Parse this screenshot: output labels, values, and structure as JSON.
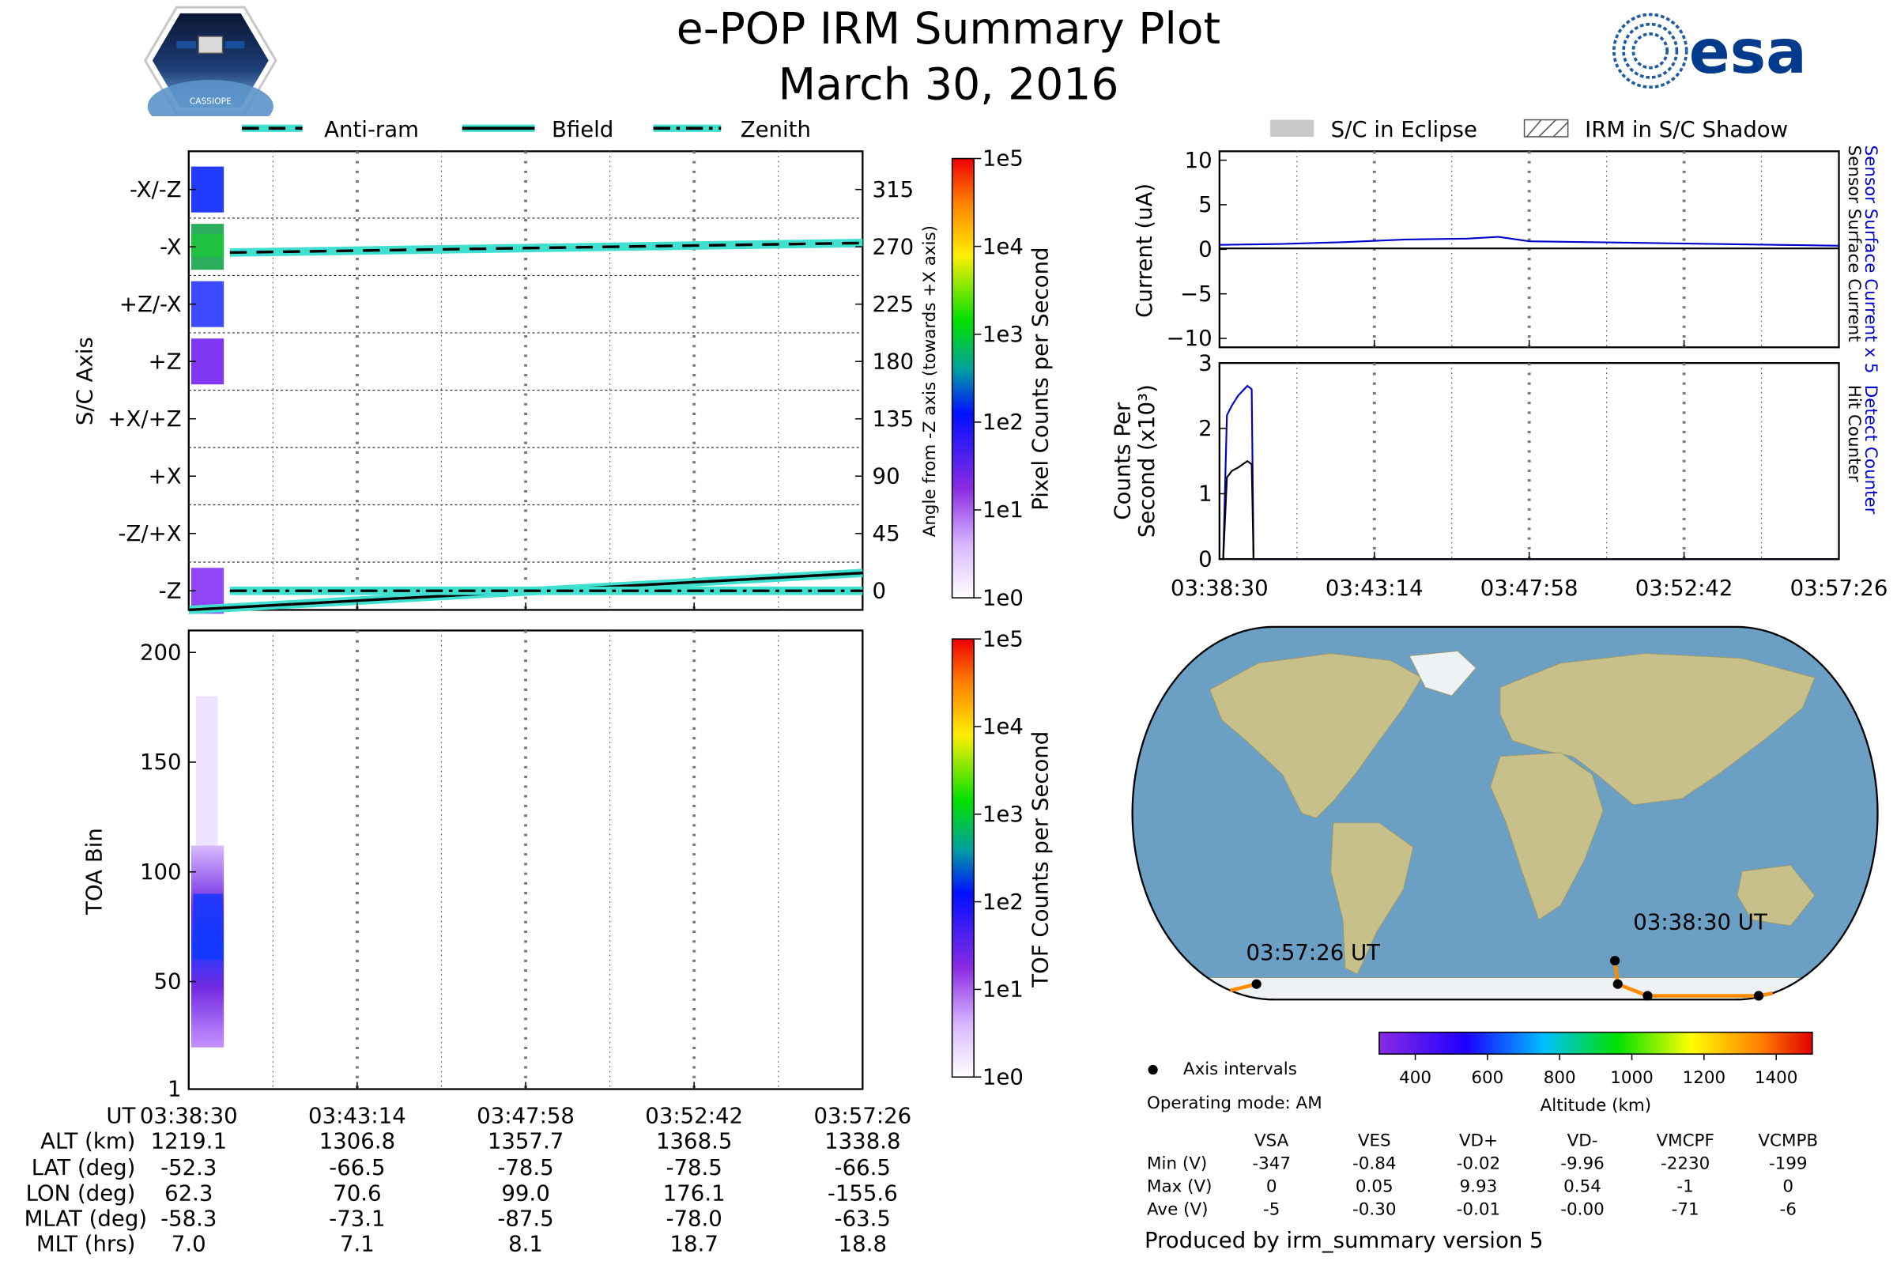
{
  "header": {
    "title": "e-POP IRM Summary Plot",
    "date": "March 30, 2016",
    "logo_left_text": "CASSIOPE",
    "logo_right_text": "esa"
  },
  "colors": {
    "line_cyan": "#40e0d0",
    "current_blue": "#0000cc",
    "orbit_orange": "#ff8c00",
    "ocean": "#6b9fc4",
    "land": "#c8c08a"
  },
  "legends": {
    "angle": [
      "Anti-ram",
      "Bfield",
      "Zenith"
    ],
    "current": [
      "S/C in Eclipse",
      "IRM in S/C Shadow"
    ]
  },
  "chart_data": [
    {
      "id": "sc-axis-angle",
      "type": "heatmap",
      "ylabel": "S/C Axis",
      "ylabel_right": "Angle from -Z axis (towards +X axis)",
      "categories_left": [
        "-X/-Z",
        "-X",
        "+Z/-X",
        "+Z",
        "+X/+Z",
        "+X",
        "-Z/+X",
        "-Z"
      ],
      "right_ticks": [
        "315",
        "270",
        "225",
        "180",
        "135",
        "90",
        "45",
        "0"
      ],
      "ylim": [
        -15,
        345
      ],
      "series": [
        {
          "name": "Anti-ram",
          "style": "dashed",
          "x": [
            0,
            1
          ],
          "values": [
            265,
            273
          ]
        },
        {
          "name": "Bfield",
          "style": "solid",
          "x": [
            0,
            1
          ],
          "values": [
            -15,
            14
          ]
        },
        {
          "name": "Zenith",
          "style": "dashdot",
          "x": [
            0,
            1
          ],
          "values": [
            0,
            0
          ]
        }
      ],
      "colorbar": {
        "label": "Pixel Counts per Second",
        "ticks": [
          "1e5",
          "1e4",
          "1e3",
          "1e2",
          "1e1",
          "1e0"
        ]
      }
    },
    {
      "id": "toa-bin",
      "type": "heatmap",
      "ylabel": "TOA Bin",
      "ylim": [
        1,
        210
      ],
      "yticks": [
        "200",
        "150",
        "100",
        "50",
        "1"
      ],
      "colorbar": {
        "label": "TOF Counts per Second",
        "ticks": [
          "1e5",
          "1e4",
          "1e3",
          "1e2",
          "1e1",
          "1e0"
        ]
      }
    },
    {
      "id": "current",
      "type": "line",
      "ylabel": "Current (uA)",
      "yticks": [
        "10",
        "5",
        "0",
        "−5",
        "−10"
      ],
      "ylim": [
        -11,
        11
      ],
      "series": [
        {
          "name": "Sensor Surface Current x 5",
          "x": [
            0,
            0.1,
            0.2,
            0.3,
            0.4,
            0.45,
            0.5,
            0.6,
            0.7,
            0.8,
            0.9,
            1.0
          ],
          "values": [
            0.5,
            0.6,
            0.8,
            1.1,
            1.2,
            1.4,
            0.9,
            0.8,
            0.7,
            0.6,
            0.5,
            0.4
          ]
        },
        {
          "name": "Sensor Surface Current",
          "x": [
            0,
            1
          ],
          "values": [
            0.1,
            0.1
          ]
        }
      ],
      "right_labels": [
        "Sensor Surface Current x 5",
        "Sensor Surface Current"
      ]
    },
    {
      "id": "counts",
      "type": "line",
      "ylabel": "Counts Per",
      "ylabel2": "Second (x10³)",
      "yticks": [
        "3",
        "2",
        "1",
        "0"
      ],
      "ylim": [
        0,
        3
      ],
      "series": [
        {
          "name": "Detect Counter",
          "x": [
            0,
            0.006,
            0.012,
            0.02,
            0.03,
            0.045,
            0.052,
            0.055,
            0.06,
            1.0
          ],
          "values": [
            0,
            0,
            2.2,
            2.35,
            2.5,
            2.65,
            2.6,
            0,
            0,
            0
          ]
        },
        {
          "name": "Hit Counter",
          "x": [
            0,
            0.006,
            0.012,
            0.02,
            0.03,
            0.045,
            0.052,
            0.055,
            0.06,
            1.0
          ],
          "values": [
            0,
            0,
            1.25,
            1.35,
            1.4,
            1.5,
            1.45,
            0,
            0,
            0
          ]
        }
      ],
      "right_labels": [
        "Detect Counter",
        "Hit Counter"
      ]
    },
    {
      "id": "orbit-map",
      "type": "scatter",
      "labels": [
        "03:38:30 UT",
        "03:57:26 UT"
      ],
      "colorbar": {
        "label": "Altitude (km)",
        "ticks": [
          "400",
          "600",
          "800",
          "1000",
          "1200",
          "1400"
        ],
        "range": [
          300,
          1500
        ]
      },
      "points": [
        {
          "lon": 62.3,
          "lat": -52.3
        },
        {
          "lon": 70.6,
          "lat": -66.5
        },
        {
          "lon": 99.0,
          "lat": -78.5
        },
        {
          "lon": 176.1,
          "lat": -78.5
        },
        {
          "lon": -155.6,
          "lat": -66.5
        }
      ]
    }
  ],
  "time_axis": [
    "03:38:30",
    "03:43:14",
    "03:47:58",
    "03:52:42",
    "03:57:26"
  ],
  "ephemeris": {
    "labels": [
      "UT",
      "ALT (km)",
      "LAT (deg)",
      "LON (deg)",
      "MLAT (deg)",
      "MLT (hrs)"
    ],
    "columns": [
      [
        "03:38:30",
        "1219.1",
        "-52.3",
        "62.3",
        "-58.3",
        "7.0"
      ],
      [
        "03:43:14",
        "1306.8",
        "-66.5",
        "70.6",
        "-73.1",
        "7.1"
      ],
      [
        "03:47:58",
        "1357.7",
        "-78.5",
        "99.0",
        "-87.5",
        "8.1"
      ],
      [
        "03:52:42",
        "1368.5",
        "-78.5",
        "176.1",
        "-78.0",
        "18.7"
      ],
      [
        "03:57:26",
        "1338.8",
        "-66.5",
        "-155.6",
        "-63.5",
        "18.8"
      ]
    ]
  },
  "info": {
    "axis_intervals": "Axis intervals",
    "operating_mode": "Operating mode: AM",
    "produced_by": "Produced by irm_summary version 5"
  },
  "voltages": {
    "headers": [
      "VSA",
      "VES",
      "VD+",
      "VD-",
      "VMCPF",
      "VCMPB"
    ],
    "rows": [
      {
        "label": "Min (V)",
        "values": [
          "-347",
          "-0.84",
          "-0.02",
          "-9.96",
          "-2230",
          "-199"
        ]
      },
      {
        "label": "Max (V)",
        "values": [
          "0",
          "0.05",
          "9.93",
          "0.54",
          "-1",
          "0"
        ]
      },
      {
        "label": "Ave (V)",
        "values": [
          "-5",
          "-0.30",
          "-0.01",
          "-0.00",
          "-71",
          "-6"
        ]
      }
    ]
  }
}
